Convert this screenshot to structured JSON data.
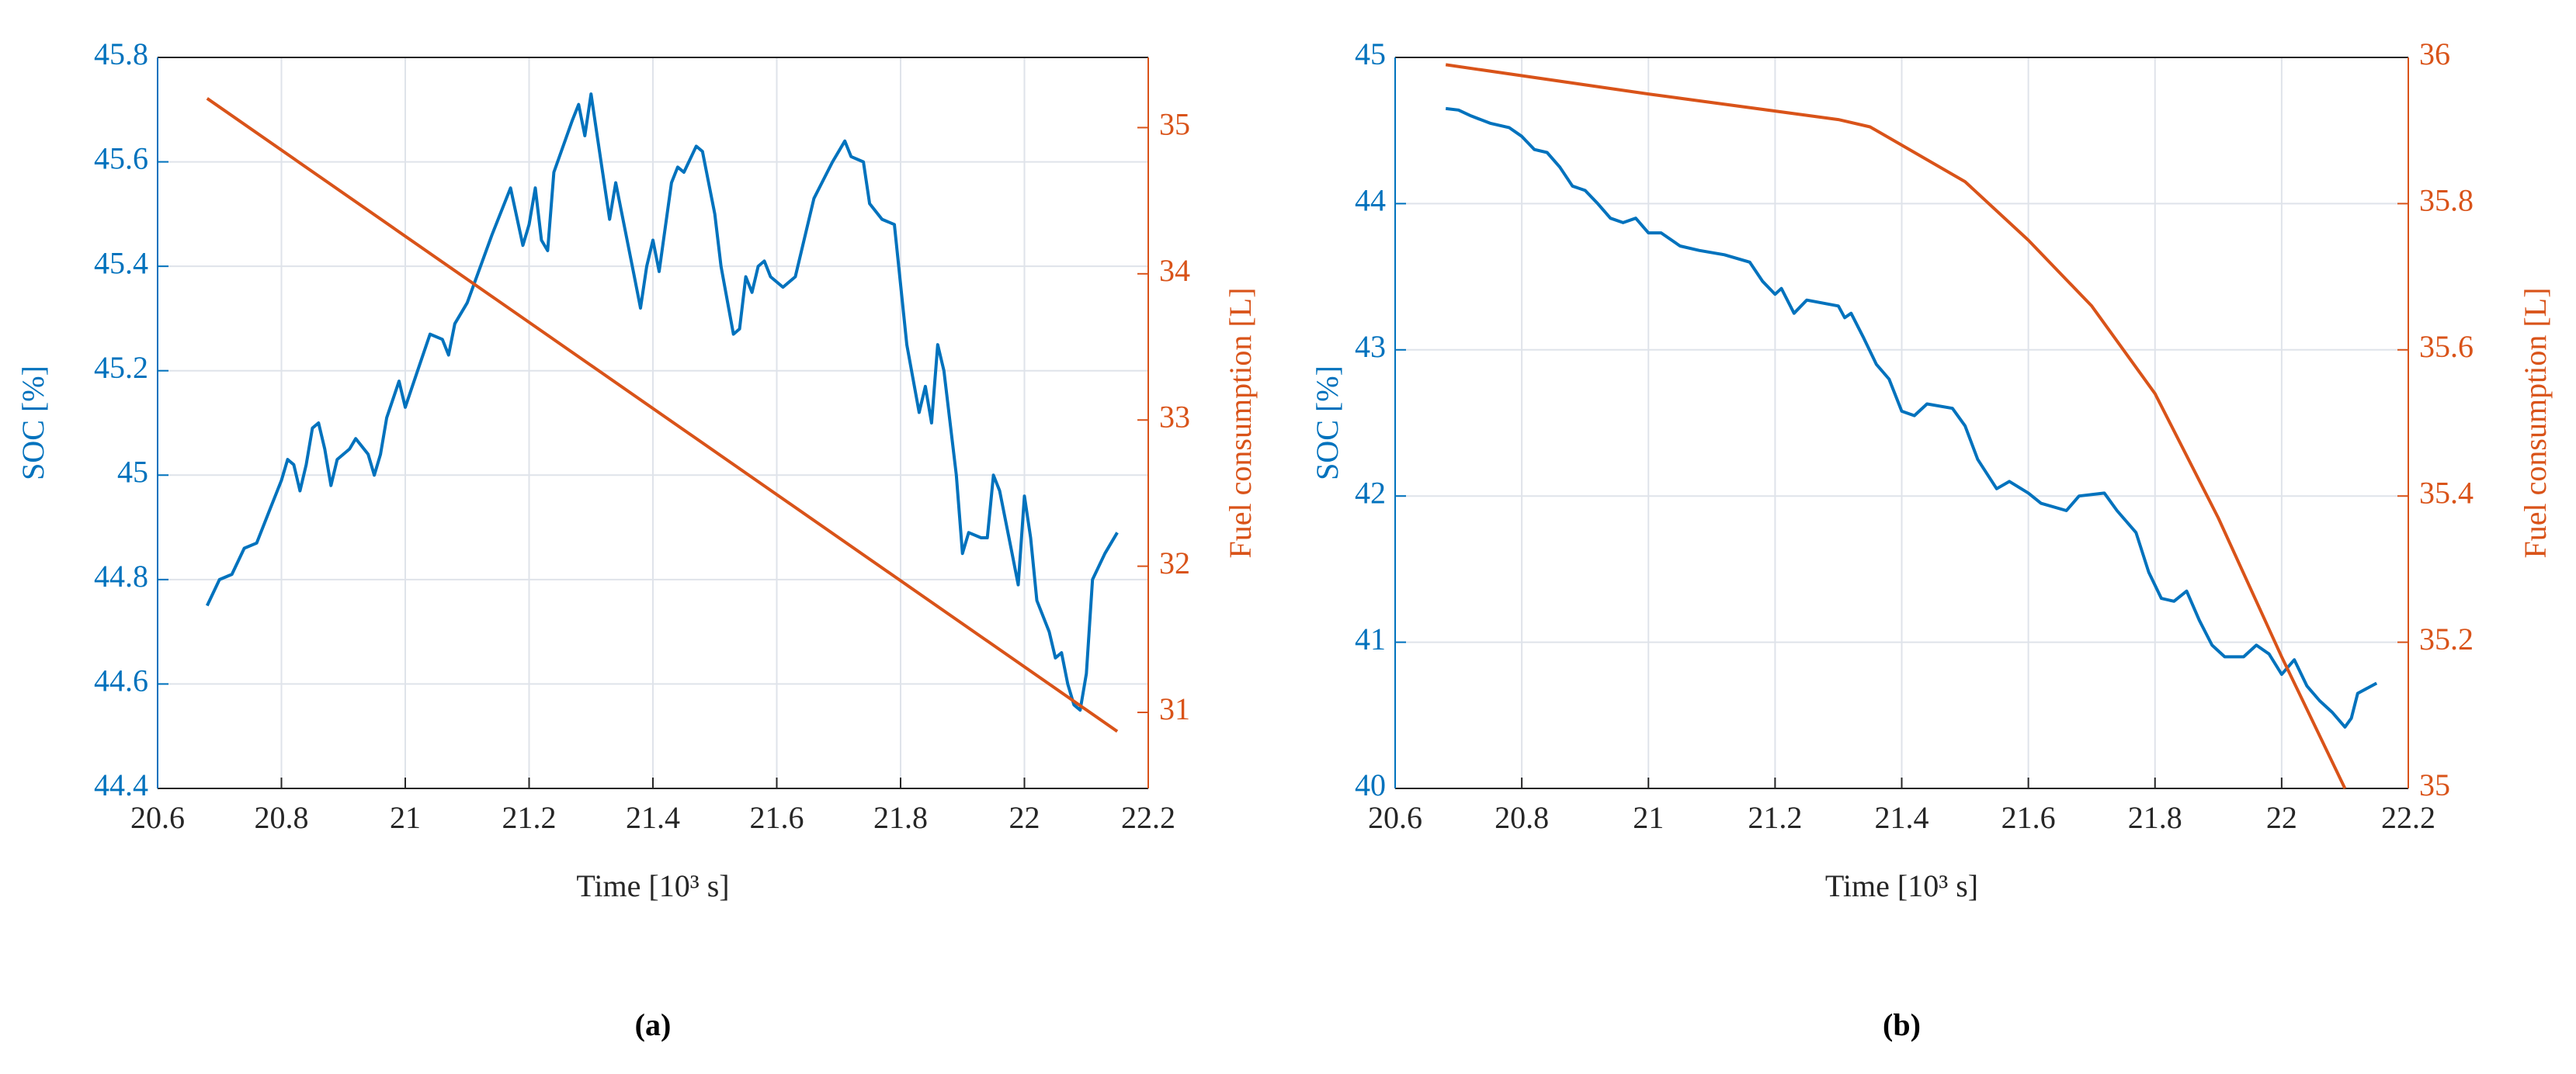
{
  "chart_data": [
    {
      "type": "line",
      "panel_label": "(a)",
      "xlabel": "Time [10³ s]",
      "ylabel": "SOC [%]",
      "y2label": "Fuel consumption [L]",
      "xlim": [
        20.6,
        22.2
      ],
      "xticks": [
        20.6,
        20.8,
        21,
        21.2,
        21.4,
        21.6,
        21.8,
        22,
        22.2
      ],
      "ylim": [
        44.4,
        45.8
      ],
      "yticks": [
        44.4,
        44.6,
        44.8,
        45,
        45.2,
        45.4,
        45.6,
        45.8
      ],
      "y2lim": [
        30.48,
        35.48
      ],
      "y2ticks": [
        31,
        32,
        33,
        34,
        35
      ],
      "grid": true,
      "series": [
        {
          "color": "#0072bd",
          "x": [
            20.68,
            20.7,
            20.72,
            20.74,
            20.76,
            20.78,
            20.8,
            20.81,
            20.82,
            20.83,
            20.84,
            20.85,
            20.86,
            20.87,
            20.88,
            20.89,
            20.91,
            20.92,
            20.94,
            20.95,
            20.96,
            20.97,
            20.99,
            21.0,
            21.02,
            21.04,
            21.06,
            21.07,
            21.08,
            21.1,
            21.14,
            21.17,
            21.19,
            21.2,
            21.21,
            21.22,
            21.23,
            21.24,
            21.27,
            21.28,
            21.29,
            21.3,
            21.31,
            21.32,
            21.33,
            21.34,
            21.35,
            21.37,
            21.38,
            21.39,
            21.4,
            21.41,
            21.43,
            21.44,
            21.45,
            21.47,
            21.48,
            21.5,
            21.51,
            21.53,
            21.54,
            21.55,
            21.56,
            21.57,
            21.58,
            21.59,
            21.61,
            21.63,
            21.64,
            21.66,
            21.69,
            21.71,
            21.72,
            21.74,
            21.75,
            21.77,
            21.79,
            21.81,
            21.83,
            21.84,
            21.85,
            21.86,
            21.87,
            21.88,
            21.89,
            21.9,
            21.91,
            21.93,
            21.94,
            21.95,
            21.96,
            21.98,
            21.99,
            22.0,
            22.01,
            22.02,
            22.04,
            22.05,
            22.06,
            22.07,
            22.08,
            22.09,
            22.1,
            22.11,
            22.13,
            22.15
          ],
          "values": [
            44.75,
            44.8,
            44.81,
            44.86,
            44.87,
            44.93,
            44.99,
            45.03,
            45.02,
            44.97,
            45.02,
            45.09,
            45.1,
            45.05,
            44.98,
            45.03,
            45.05,
            45.07,
            45.04,
            45.0,
            45.04,
            45.11,
            45.18,
            45.13,
            45.2,
            45.27,
            45.26,
            45.23,
            45.29,
            45.33,
            45.46,
            45.55,
            45.44,
            45.48,
            45.55,
            45.45,
            45.43,
            45.58,
            45.68,
            45.71,
            45.65,
            45.73,
            45.65,
            45.57,
            45.49,
            45.56,
            45.5,
            45.38,
            45.32,
            45.4,
            45.45,
            45.39,
            45.56,
            45.59,
            45.58,
            45.63,
            45.62,
            45.5,
            45.4,
            45.27,
            45.28,
            45.38,
            45.35,
            45.4,
            45.41,
            45.38,
            45.36,
            45.38,
            45.43,
            45.53,
            45.6,
            45.64,
            45.61,
            45.6,
            45.52,
            45.49,
            45.48,
            45.25,
            45.12,
            45.17,
            45.1,
            45.25,
            45.2,
            45.1,
            45.0,
            44.85,
            44.89,
            44.88,
            44.88,
            45.0,
            44.97,
            44.85,
            44.79,
            44.96,
            44.88,
            44.76,
            44.7,
            44.65,
            44.66,
            44.6,
            44.56,
            44.55,
            44.62,
            44.8,
            44.85,
            44.89
          ]
        },
        {
          "color": "#d95319",
          "axis": "y2",
          "x": [
            20.68,
            22.15
          ],
          "values": [
            35.2,
            30.87
          ]
        }
      ]
    },
    {
      "type": "line",
      "panel_label": "(b)",
      "xlabel": "Time [10³ s]",
      "ylabel": "SOC [%]",
      "y2label": "Fuel consumption [L]",
      "xlim": [
        20.6,
        22.2
      ],
      "xticks": [
        20.6,
        20.8,
        21,
        21.2,
        21.4,
        21.6,
        21.8,
        22,
        22.2
      ],
      "ylim": [
        40,
        45
      ],
      "yticks": [
        40,
        41,
        42,
        43,
        44,
        45
      ],
      "y2lim": [
        35,
        36
      ],
      "y2ticks": [
        35,
        35.2,
        35.4,
        35.6,
        35.8,
        36
      ],
      "grid": true,
      "series": [
        {
          "color": "#0072bd",
          "x": [
            20.68,
            20.7,
            20.72,
            20.75,
            20.78,
            20.8,
            20.82,
            20.84,
            20.86,
            20.88,
            20.9,
            20.92,
            20.94,
            20.96,
            20.98,
            21.0,
            21.02,
            21.05,
            21.08,
            21.12,
            21.16,
            21.18,
            21.2,
            21.21,
            21.23,
            21.25,
            21.3,
            21.31,
            21.32,
            21.34,
            21.36,
            21.38,
            21.4,
            21.42,
            21.44,
            21.48,
            21.5,
            21.52,
            21.55,
            21.57,
            21.6,
            21.62,
            21.66,
            21.68,
            21.72,
            21.74,
            21.77,
            21.79,
            21.81,
            21.83,
            21.85,
            21.87,
            21.89,
            21.91,
            21.94,
            21.96,
            21.98,
            22.0,
            22.02,
            22.04,
            22.06,
            22.08,
            22.1,
            22.11,
            22.12,
            22.15
          ],
          "values": [
            44.65,
            44.64,
            44.6,
            44.55,
            44.52,
            44.46,
            44.37,
            44.35,
            44.25,
            44.12,
            44.09,
            44.0,
            43.9,
            43.87,
            43.9,
            43.8,
            43.8,
            43.71,
            43.68,
            43.65,
            43.6,
            43.47,
            43.38,
            43.42,
            43.25,
            43.34,
            43.3,
            43.22,
            43.25,
            43.08,
            42.9,
            42.8,
            42.58,
            42.55,
            42.63,
            42.6,
            42.48,
            42.25,
            42.05,
            42.1,
            42.02,
            41.95,
            41.9,
            42.0,
            42.02,
            41.9,
            41.75,
            41.48,
            41.3,
            41.28,
            41.35,
            41.15,
            40.98,
            40.9,
            40.9,
            40.98,
            40.92,
            40.78,
            40.88,
            40.7,
            40.6,
            40.52,
            40.42,
            40.48,
            40.65,
            40.72
          ]
        },
        {
          "color": "#d95319",
          "axis": "y2",
          "x": [
            20.68,
            21.0,
            21.3,
            21.35,
            21.4,
            21.5,
            21.6,
            21.7,
            21.8,
            21.9,
            22.0,
            22.05,
            22.1
          ],
          "values": [
            35.99,
            35.95,
            35.915,
            35.905,
            35.88,
            35.83,
            35.75,
            35.66,
            35.54,
            35.37,
            35.18,
            35.09,
            35.0
          ]
        }
      ]
    }
  ]
}
